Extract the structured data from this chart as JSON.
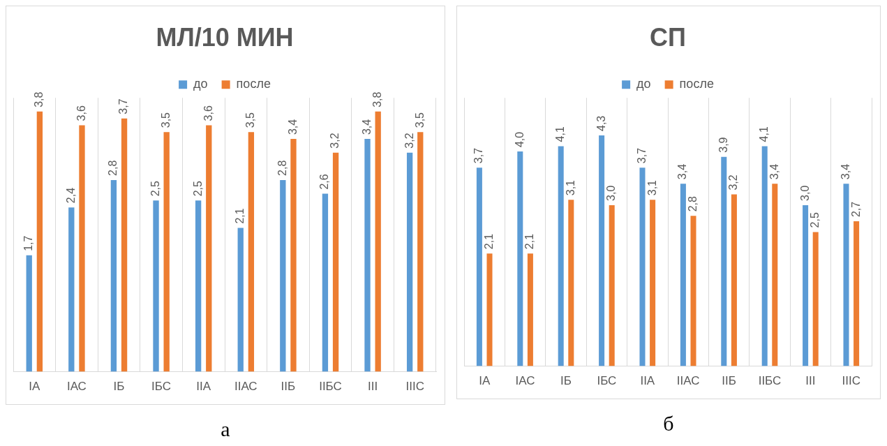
{
  "chart_data": [
    {
      "type": "bar",
      "title": "МЛ/10 МИН",
      "categories": [
        "IА",
        "IАС",
        "IБ",
        "IБС",
        "IIА",
        "IIАС",
        "IIБ",
        "IIБС",
        "III",
        "IIIС"
      ],
      "series": [
        {
          "name": "до",
          "color": "#5b9bd5",
          "values": [
            1.7,
            2.4,
            2.8,
            2.5,
            2.5,
            2.1,
            2.8,
            2.6,
            3.4,
            3.2
          ],
          "value_labels": [
            "1,7",
            "2,4",
            "2,8",
            "2,5",
            "2,5",
            "2,1",
            "2,8",
            "2,6",
            "3,4",
            "3,2"
          ]
        },
        {
          "name": "после",
          "color": "#ed7d31",
          "values": [
            3.8,
            3.6,
            3.7,
            3.5,
            3.6,
            3.5,
            3.4,
            3.2,
            3.8,
            3.5
          ],
          "value_labels": [
            "3,8",
            "3,6",
            "3,7",
            "3,5",
            "3,6",
            "3,5",
            "3,4",
            "3,2",
            "3,8",
            "3,5"
          ]
        }
      ],
      "ylim": [
        0,
        4
      ],
      "tick_labels": "x",
      "grid": "x",
      "legend": "top",
      "annotations": [
        "а"
      ]
    },
    {
      "type": "bar",
      "title": "СП",
      "categories": [
        "IА",
        "IАС",
        "IБ",
        "IБС",
        "IIА",
        "IIАС",
        "IIБ",
        "IIБС",
        "III",
        "IIIС"
      ],
      "series": [
        {
          "name": "до",
          "color": "#5b9bd5",
          "values": [
            3.7,
            4.0,
            4.1,
            4.3,
            3.7,
            3.4,
            3.9,
            4.1,
            3.0,
            3.4
          ],
          "value_labels": [
            "3,7",
            "4,0",
            "4,1",
            "4,3",
            "3,7",
            "3,4",
            "3,9",
            "4,1",
            "3,0",
            "3,4"
          ]
        },
        {
          "name": "после",
          "color": "#ed7d31",
          "values": [
            2.1,
            2.1,
            3.1,
            3.0,
            3.1,
            2.8,
            3.2,
            3.4,
            2.5,
            2.7
          ],
          "value_labels": [
            "2,1",
            "2,1",
            "3,1",
            "3,0",
            "3,1",
            "2,8",
            "3,2",
            "3,4",
            "2,5",
            "2,7"
          ]
        }
      ],
      "ylim": [
        0,
        5
      ],
      "tick_labels": "x",
      "grid": "x",
      "legend": "top",
      "annotations": [
        "б"
      ]
    }
  ]
}
